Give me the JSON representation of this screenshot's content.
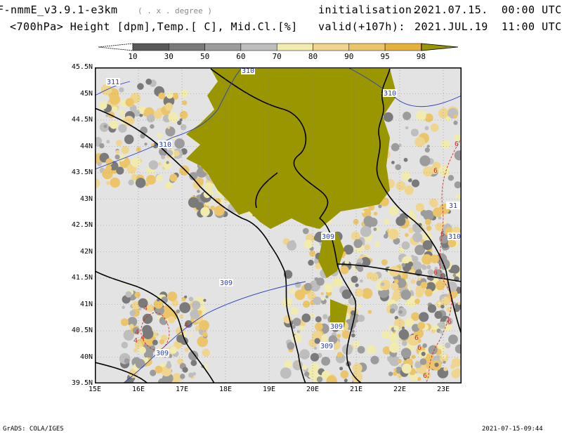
{
  "header": {
    "model": "F-nmmE_v3.9.1-e3km",
    "grid_note": "( . x . degree )",
    "fields": "<700hPa> Height [dpm],Temp.[ C], Mid.Cl.[%]",
    "init_label": "initialisation:",
    "init_value": "2021.07.15.  00:00 UTC",
    "valid_label": "valid(+107h):",
    "valid_value": "2021.JUL.19  11:00 UTC"
  },
  "colorbar": {
    "levels": [
      "10",
      "30",
      "50",
      "60",
      "70",
      "80",
      "90",
      "95",
      "98"
    ],
    "colors": [
      "#595959",
      "#7a7a7a",
      "#9c9c9c",
      "#bebebe",
      "#f1ebb0",
      "#f0d58f",
      "#ecc56a",
      "#e5b23f",
      "#9a9600"
    ]
  },
  "map": {
    "lat_labels": [
      "45.5N",
      "45N",
      "44.5N",
      "44N",
      "43.5N",
      "43N",
      "42.5N",
      "42N",
      "41.5N",
      "41N",
      "40.5N",
      "40N",
      "39.5N"
    ],
    "lon_labels": [
      "15E",
      "16E",
      "17E",
      "18E",
      "19E",
      "20E",
      "21E",
      "22E",
      "23E"
    ],
    "height_labels": [
      "310",
      "311",
      "310",
      "310",
      "309",
      "309",
      "309",
      "309",
      "309",
      "310",
      "31"
    ],
    "temp_labels": [
      "4",
      "4",
      "4",
      "4",
      "4",
      "6",
      "6",
      "6",
      "6",
      "6",
      "6",
      "6",
      "6"
    ]
  },
  "footer": {
    "left": "GrADS: COLA/IGES",
    "right": "2021-07-15-09:44"
  }
}
